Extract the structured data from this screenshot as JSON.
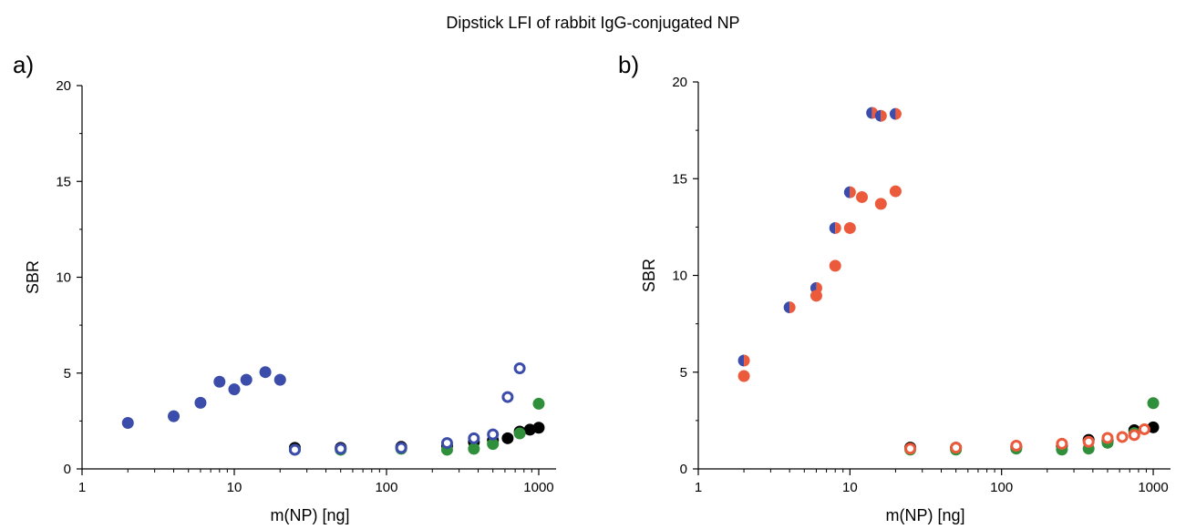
{
  "title": "Dipstick LFI of rabbit IgG-conjugated NP",
  "colors": {
    "blue": "#3b4cab",
    "red": "#ec5a3c",
    "green": "#2f8f3a",
    "black": "#000000"
  },
  "chart_data": [
    {
      "panel": "a)",
      "type": "scatter",
      "xlabel": "m(NP) [ng]",
      "ylabel": "SBR",
      "xscale": "log",
      "xlim": [
        1,
        1300
      ],
      "ylim": [
        0,
        20
      ],
      "xticks": [
        1,
        10,
        100,
        1000
      ],
      "xtick_labels": [
        "1",
        "10",
        "100",
        "1000"
      ],
      "yticks": [
        0,
        5,
        10,
        15,
        20
      ],
      "ytick_labels": [
        "0",
        "5",
        "10",
        "15",
        "20"
      ],
      "series": [
        {
          "color": "blue",
          "marker": "filled",
          "x": [
            2,
            4,
            6,
            8,
            10,
            12,
            16,
            20
          ],
          "y": [
            2.4,
            2.75,
            3.45,
            4.55,
            4.15,
            4.65,
            5.05,
            4.65
          ]
        },
        {
          "color": "black",
          "marker": "filled",
          "x": [
            25,
            50,
            125,
            250,
            375,
            500,
            625,
            750,
            875,
            1000
          ],
          "y": [
            1.1,
            1.1,
            1.15,
            1.2,
            1.4,
            1.5,
            1.6,
            1.95,
            2.05,
            2.15
          ]
        },
        {
          "color": "green",
          "marker": "filled",
          "x": [
            25,
            50,
            125,
            250,
            375,
            500,
            750,
            1000
          ],
          "y": [
            1.0,
            1.0,
            1.05,
            1.0,
            1.05,
            1.3,
            1.85,
            3.4
          ]
        },
        {
          "color": "blue",
          "marker": "open",
          "x": [
            25,
            50,
            125,
            250,
            375,
            500,
            625,
            750
          ],
          "y": [
            1.0,
            1.05,
            1.1,
            1.35,
            1.6,
            1.8,
            3.75,
            5.25
          ]
        }
      ]
    },
    {
      "panel": "b)",
      "type": "scatter",
      "xlabel": "m(NP) [ng]",
      "ylabel": "SBR",
      "xscale": "log",
      "xlim": [
        1,
        1300
      ],
      "ylim": [
        0,
        20
      ],
      "xticks": [
        1,
        10,
        100,
        1000
      ],
      "xtick_labels": [
        "1",
        "10",
        "100",
        "1000"
      ],
      "yticks": [
        0,
        5,
        10,
        15,
        20
      ],
      "ytick_labels": [
        "0",
        "5",
        "10",
        "15",
        "20"
      ],
      "series": [
        {
          "color": "blue-red",
          "marker": "half",
          "x": [
            2,
            4,
            6,
            8,
            10,
            14,
            16,
            20
          ],
          "y": [
            5.6,
            8.35,
            9.35,
            12.45,
            14.3,
            18.4,
            18.25,
            18.35
          ]
        },
        {
          "color": "red",
          "marker": "filled",
          "x": [
            2,
            6,
            8,
            10,
            12,
            16,
            20
          ],
          "y": [
            4.8,
            8.95,
            10.5,
            12.45,
            14.05,
            13.7,
            14.35
          ]
        },
        {
          "color": "black",
          "marker": "filled",
          "x": [
            25,
            50,
            125,
            250,
            375,
            500,
            750,
            1000
          ],
          "y": [
            1.1,
            1.1,
            1.15,
            1.2,
            1.5,
            1.45,
            2.0,
            2.15
          ]
        },
        {
          "color": "green",
          "marker": "filled",
          "x": [
            25,
            50,
            125,
            250,
            375,
            500,
            750,
            1000
          ],
          "y": [
            1.0,
            1.0,
            1.05,
            1.0,
            1.05,
            1.35,
            1.85,
            3.4
          ]
        },
        {
          "color": "red",
          "marker": "open",
          "x": [
            25,
            50,
            125,
            250,
            375,
            500,
            625,
            750,
            875
          ],
          "y": [
            1.05,
            1.1,
            1.2,
            1.3,
            1.4,
            1.6,
            1.65,
            1.75,
            2.05
          ]
        }
      ]
    }
  ]
}
